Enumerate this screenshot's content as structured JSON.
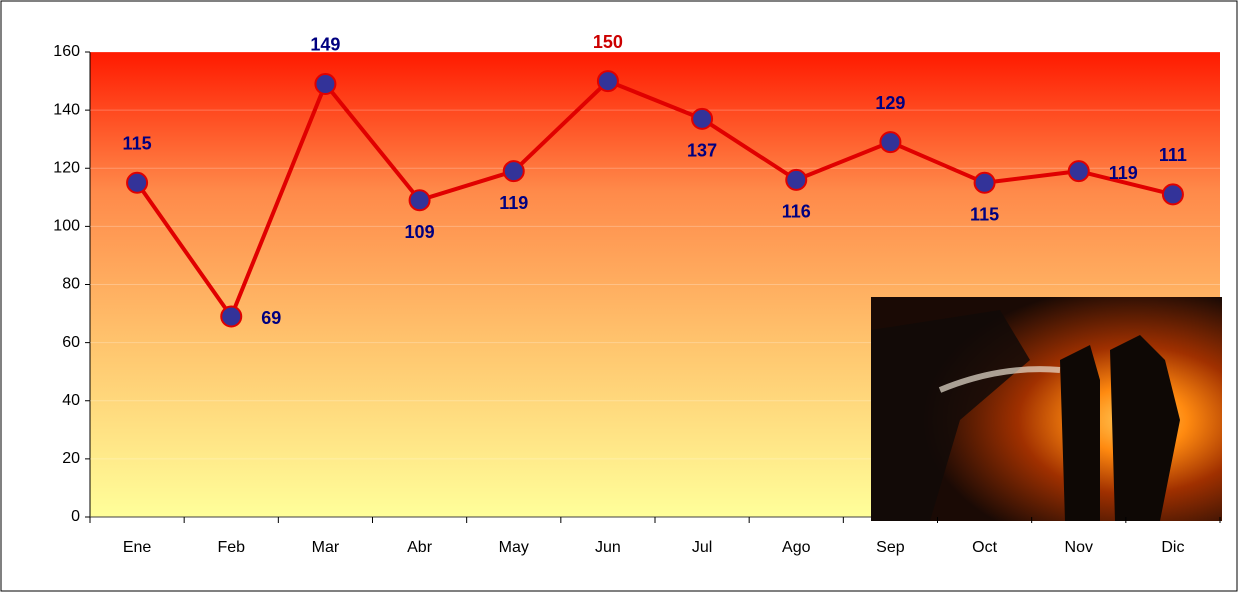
{
  "chart_data": {
    "type": "line",
    "categories": [
      "Ene",
      "Feb",
      "Mar",
      "Abr",
      "May",
      "Jun",
      "Jul",
      "Ago",
      "Sep",
      "Oct",
      "Nov",
      "Dic"
    ],
    "values": [
      115,
      69,
      149,
      109,
      119,
      150,
      137,
      116,
      129,
      115,
      119,
      111
    ],
    "color": "#e00000",
    "marker_color": "#333399",
    "label_color": "#000080",
    "highlight_color": "#cc0000",
    "ylim": [
      0,
      160
    ],
    "yticks": [
      0,
      20,
      40,
      60,
      80,
      100,
      120,
      140,
      160
    ],
    "grid": true
  }
}
